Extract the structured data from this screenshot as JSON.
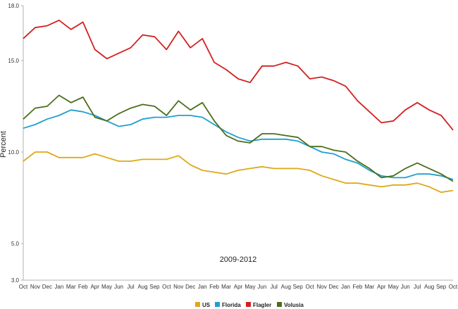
{
  "chart_data": {
    "type": "line",
    "title": "",
    "xlabel": "2009-2012",
    "ylabel": "Percent",
    "ylim": [
      3.0,
      18.0
    ],
    "y_ticks": [
      "3.0",
      "5.0",
      "10.0",
      "15.0",
      "18.0"
    ],
    "grid": false,
    "legend_position": "bottom",
    "categories": [
      "Oct",
      "Nov",
      "Dec",
      "Jan",
      "Mar",
      "Feb",
      "Apr",
      "May",
      "Jun",
      "Jul",
      "Aug",
      "Sep",
      "Oct",
      "Nov",
      "Dec",
      "Jan",
      "Feb",
      "Mar",
      "Apr",
      "May",
      "Jun",
      "Jul",
      "Aug",
      "Sep",
      "Oct",
      "Nov",
      "Dec",
      "Jan",
      "Feb",
      "Mar",
      "Apr",
      "May",
      "Jun",
      "Jul",
      "Aug",
      "Sep",
      "Oct"
    ],
    "series": [
      {
        "name": "US",
        "color": "#e0a818",
        "values": [
          9.5,
          10.0,
          10.0,
          9.7,
          9.7,
          9.7,
          9.9,
          9.7,
          9.5,
          9.5,
          9.6,
          9.6,
          9.6,
          9.8,
          9.3,
          9.0,
          8.9,
          8.8,
          9.0,
          9.1,
          9.2,
          9.1,
          9.1,
          9.1,
          9.0,
          8.7,
          8.5,
          8.3,
          8.3,
          8.2,
          8.1,
          8.2,
          8.2,
          8.3,
          8.1,
          7.8,
          7.9
        ]
      },
      {
        "name": "Florida",
        "color": "#1e9fd0",
        "values": [
          11.3,
          11.5,
          11.8,
          12.0,
          12.3,
          12.2,
          12.0,
          11.7,
          11.4,
          11.5,
          11.8,
          11.9,
          11.9,
          12.0,
          12.0,
          11.9,
          11.5,
          11.1,
          10.8,
          10.6,
          10.7,
          10.7,
          10.7,
          10.6,
          10.3,
          10.0,
          9.9,
          9.6,
          9.4,
          9.0,
          8.7,
          8.6,
          8.6,
          8.8,
          8.8,
          8.7,
          8.5
        ]
      },
      {
        "name": "Flagler",
        "color": "#d42020",
        "values": [
          16.2,
          16.8,
          16.9,
          17.2,
          16.7,
          17.1,
          15.6,
          15.1,
          15.4,
          15.7,
          16.4,
          16.3,
          15.6,
          16.6,
          15.7,
          16.2,
          14.9,
          14.5,
          14.0,
          13.8,
          14.7,
          14.7,
          14.9,
          14.7,
          14.0,
          14.1,
          13.9,
          13.6,
          12.8,
          12.2,
          11.6,
          11.7,
          12.3,
          12.7,
          12.3,
          12.0,
          11.2
        ]
      },
      {
        "name": "Volusia",
        "color": "#4c6e1c",
        "values": [
          11.8,
          12.4,
          12.5,
          13.1,
          12.7,
          13.0,
          11.9,
          11.7,
          12.1,
          12.4,
          12.6,
          12.5,
          12.0,
          12.8,
          12.3,
          12.7,
          11.7,
          10.9,
          10.6,
          10.5,
          11.0,
          11.0,
          10.9,
          10.8,
          10.3,
          10.3,
          10.1,
          10.0,
          9.5,
          9.1,
          8.6,
          8.7,
          9.1,
          9.4,
          9.1,
          8.8,
          8.4
        ]
      }
    ]
  }
}
